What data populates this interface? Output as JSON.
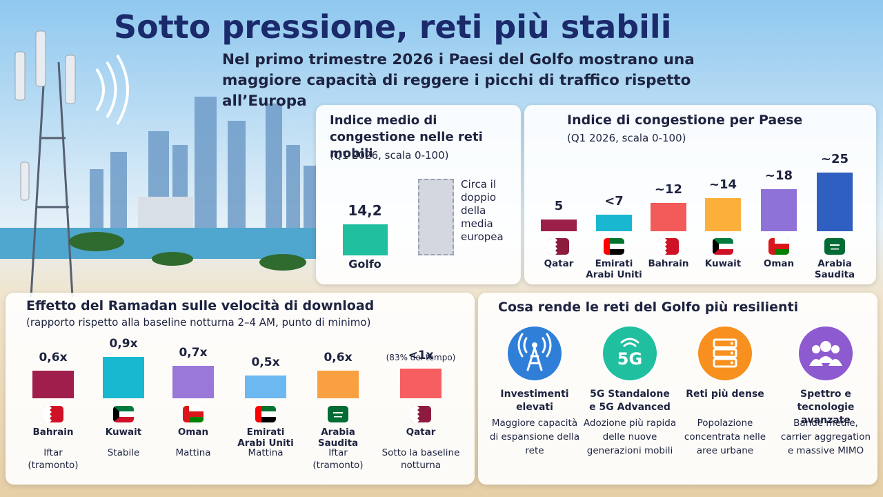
{
  "header": {
    "title": "Sotto pressione, reti più stabili",
    "subtitle": "Nel primo trimestre 2026 i Paesi del Golfo mostrano una maggiore capacità di reggere i picchi di traffico rispetto all’Europa"
  },
  "chart_data": [
    {
      "type": "bar",
      "title": "Indice medio di congestione nelle reti mobili",
      "subtitle": "(Q1 2026, scala 0-100)",
      "categories": [
        "Golfo",
        null
      ],
      "values": [
        14.2,
        35
      ],
      "value_labels": [
        "14,2",
        null
      ],
      "colors": [
        "#1fbf9f",
        "#d3d7df"
      ],
      "bar_styles": [
        "solid",
        "dashed"
      ],
      "annotation": "Circa il doppio della media europea"
    },
    {
      "type": "bar",
      "title": "Indice di congestione per Paese",
      "subtitle": "(Q1 2026, scala 0-100)",
      "categories": [
        "Qatar",
        "Emirati Arabi Uniti",
        "Bahrain",
        "Kuwait",
        "Oman",
        "Arabia Saudita"
      ],
      "values": [
        5,
        7,
        12,
        14,
        18,
        25
      ],
      "value_labels": [
        "5",
        "<7",
        "~12",
        "~14",
        "~18",
        "~25"
      ],
      "colors": [
        "#9c1f4a",
        "#1ab8d0",
        "#f35a5a",
        "#fbb03b",
        "#8f72d8",
        "#2f5fc0"
      ]
    },
    {
      "type": "bar",
      "title": "Effetto del Ramadan sulle velocità di download",
      "subtitle": "(rapporto rispetto alla baseline notturna 2–4 AM, punto di minimo)",
      "categories": [
        "Bahrain",
        "Kuwait",
        "Oman",
        "Emirati Arabi Uniti",
        "Arabia Saudita",
        "Qatar"
      ],
      "values": [
        0.6,
        0.9,
        0.7,
        0.5,
        0.6,
        0.65
      ],
      "value_labels": [
        "0,6x",
        "0,9x",
        "0,7x",
        "0,5x",
        "0,6x",
        "<1x"
      ],
      "notes": [
        "Iftar (tramonto)",
        "Stabile",
        "Mattina",
        "Mattina",
        "Iftar (tramonto)",
        "Sotto la baseline notturna"
      ],
      "annotation": "(83% del tempo)",
      "colors": [
        "#a01e4c",
        "#18b8d0",
        "#9a78d8",
        "#6cb8f0",
        "#f9a040",
        "#f75e62"
      ]
    }
  ],
  "resilience": {
    "title": "Cosa rende le reti del Golfo più resilienti",
    "items": [
      {
        "title": "Investimenti elevati",
        "description": "Maggiore capacità di espansione della rete"
      },
      {
        "icon_label": "5G",
        "title": "5G Standalone e 5G Advanced",
        "description": "Adozione più rapida delle nuove generazioni mobili"
      },
      {
        "title": "Reti più dense",
        "description": "Popolazione concentrata nelle aree urbane"
      },
      {
        "title": "Spettro e tecnologie avanzate",
        "description": "Bande medie, carrier aggregation e massive MIMO"
      }
    ]
  }
}
